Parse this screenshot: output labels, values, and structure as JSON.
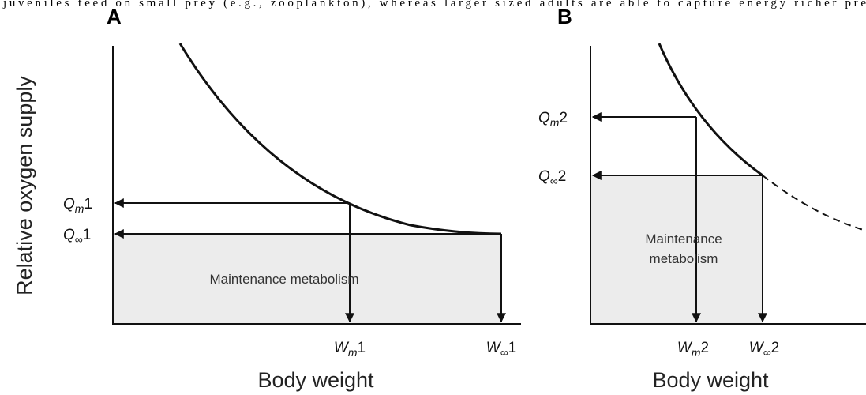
{
  "caption_fragment": "juveniles feed on small prey (e.g., zooplankton), whereas larger sized adults are able to capture energy richer pre",
  "panels": [
    {
      "label": "A",
      "y_axis": "Relative oxygen supply",
      "x_axis": "Body weight",
      "annotation": [
        "Maintenance metabolism"
      ],
      "q_labels": [
        {
          "symbol": "Q",
          "subscript": "m",
          "index": "1"
        },
        {
          "symbol": "Q",
          "subscript": "∞",
          "index": "1"
        }
      ],
      "w_labels": [
        {
          "symbol": "W",
          "subscript": "m",
          "index": "1"
        },
        {
          "symbol": "W",
          "subscript": "∞",
          "index": "1"
        }
      ]
    },
    {
      "label": "B",
      "x_axis": "Body weight",
      "annotation": [
        "Maintenance",
        "metabolism"
      ],
      "q_labels": [
        {
          "symbol": "Q",
          "subscript": "m",
          "index": "2"
        },
        {
          "symbol": "Q",
          "subscript": "∞",
          "index": "2"
        }
      ],
      "w_labels": [
        {
          "symbol": "W",
          "subscript": "m",
          "index": "2"
        },
        {
          "symbol": "W",
          "subscript": "∞",
          "index": "2"
        }
      ]
    }
  ]
}
